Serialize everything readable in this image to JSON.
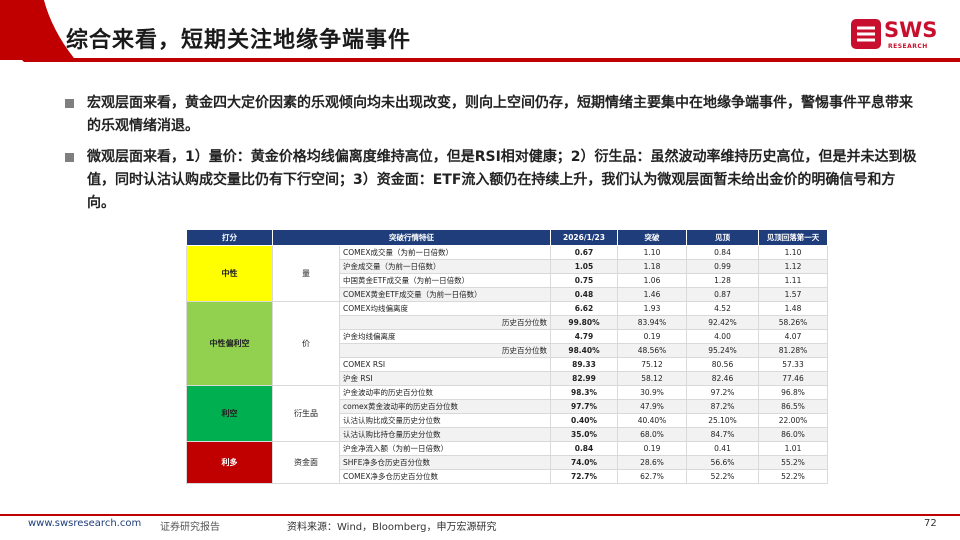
{
  "header": {
    "title": "综合来看，短期关注地缘争端事件",
    "logo_text": "SWS",
    "logo_subtext": "RESEARCH",
    "accent_color": "#c00000"
  },
  "bullets": [
    "宏观层面来看，黄金四大定价因素的乐观倾向均未出现改变，则向上空间仍存，短期情绪主要集中在地缘争端事件，警惕事件平息带来的乐观情绪消退。",
    "微观层面来看，1）量价：黄金价格均线偏离度维持高位，但是RSI相对健康；2）衍生品：虽然波动率维持历史高位，但是并未达到极值，同时认沽认购成交量比仍有下行空间；3）资金面：ETF流入额仍在持续上升，我们认为微观层面暂未给出金价的明确信号和方向。"
  ],
  "table": {
    "headers": [
      "打分",
      "突破行情特征",
      "2026/1/23",
      "突破",
      "见顶",
      "见顶回落第一天"
    ],
    "groups": [
      {
        "rating": "中性",
        "rating_color": "#ffff00",
        "rating_text_color": "#222222",
        "category": "量",
        "rows": [
          {
            "indicator": "COMEX成交量（为前一日倍数）",
            "sub": "",
            "current": "0.67",
            "breakout": "1.10",
            "peak": "0.84",
            "after_peak": "1.10"
          },
          {
            "indicator": "沪金成交量（为前一日倍数）",
            "sub": "",
            "current": "1.05",
            "breakout": "1.18",
            "peak": "0.99",
            "after_peak": "1.12"
          },
          {
            "indicator": "中国黄金ETF成交量（为前一日倍数）",
            "sub": "",
            "current": "0.75",
            "breakout": "1.06",
            "peak": "1.28",
            "after_peak": "1.11"
          },
          {
            "indicator": "COMEX黄金ETF成交量（为前一日倍数）",
            "sub": "",
            "current": "0.48",
            "breakout": "1.46",
            "peak": "0.87",
            "after_peak": "1.57"
          }
        ]
      },
      {
        "rating": "中性偏利空",
        "rating_color": "#92d050",
        "rating_text_color": "#222222",
        "category": "价",
        "rows": [
          {
            "indicator": "COMEX均线偏离度",
            "sub": "",
            "current": "6.62",
            "breakout": "1.93",
            "peak": "4.52",
            "after_peak": "1.48"
          },
          {
            "indicator": "",
            "sub": "历史百分位数",
            "current": "99.80%",
            "breakout": "83.94%",
            "peak": "92.42%",
            "after_peak": "58.26%"
          },
          {
            "indicator": "沪金均线偏离度",
            "sub": "",
            "current": "4.79",
            "breakout": "0.19",
            "peak": "4.00",
            "after_peak": "4.07"
          },
          {
            "indicator": "",
            "sub": "历史百分位数",
            "current": "98.40%",
            "breakout": "48.56%",
            "peak": "95.24%",
            "after_peak": "81.28%"
          },
          {
            "indicator": "COMEX RSI",
            "sub": "",
            "current": "89.33",
            "breakout": "75.12",
            "peak": "80.56",
            "after_peak": "57.33"
          },
          {
            "indicator": "沪金 RSI",
            "sub": "",
            "current": "82.99",
            "breakout": "58.12",
            "peak": "82.46",
            "after_peak": "77.46"
          }
        ]
      },
      {
        "rating": "利空",
        "rating_color": "#00b050",
        "rating_text_color": "#222222",
        "category": "衍生品",
        "rows": [
          {
            "indicator": "沪金波动率的历史百分位数",
            "sub": "",
            "current": "98.3%",
            "breakout": "30.9%",
            "peak": "97.2%",
            "after_peak": "96.8%"
          },
          {
            "indicator": "comex黄金波动率的历史百分位数",
            "sub": "",
            "current": "97.7%",
            "breakout": "47.9%",
            "peak": "87.2%",
            "after_peak": "86.5%"
          },
          {
            "indicator": "认沽认购比成交量历史分位数",
            "sub": "",
            "current": "0.40%",
            "breakout": "40.40%",
            "peak": "25.10%",
            "after_peak": "22.00%"
          },
          {
            "indicator": "认沽认购比持仓量历史分位数",
            "sub": "",
            "current": "35.0%",
            "breakout": "68.0%",
            "peak": "84.7%",
            "after_peak": "86.0%"
          }
        ]
      },
      {
        "rating": "利多",
        "rating_color": "#c00000",
        "rating_text_color": "#ffffff",
        "category": "资金面",
        "rows": [
          {
            "indicator": "沪金净流入额（为前一日倍数）",
            "sub": "",
            "current": "0.84",
            "breakout": "0.19",
            "peak": "0.41",
            "after_peak": "1.01"
          },
          {
            "indicator": "SHFE净多仓历史百分位数",
            "sub": "",
            "current": "74.0%",
            "breakout": "28.6%",
            "peak": "56.6%",
            "after_peak": "55.2%"
          },
          {
            "indicator": "COMEX净多仓历史百分位数",
            "sub": "",
            "current": "72.7%",
            "breakout": "62.7%",
            "peak": "52.2%",
            "after_peak": "52.2%"
          }
        ]
      }
    ]
  },
  "footer": {
    "url": "www.swsresearch.com",
    "label": "证券研究报告",
    "source": "资料来源：Wind，Bloomberg，申万宏源研究",
    "page": "72"
  }
}
